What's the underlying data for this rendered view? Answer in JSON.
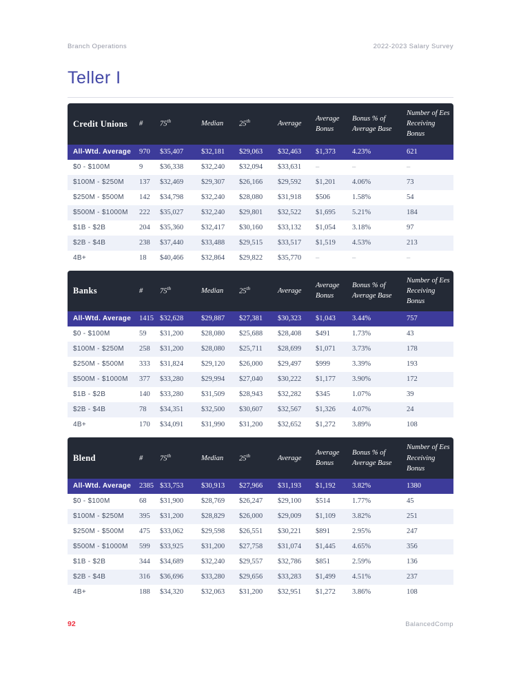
{
  "page": {
    "header_left": "Branch Operations",
    "header_right": "2022-2023 Salary Survey",
    "title": "Teller I",
    "page_number": "92",
    "footer_brand": "BalancedComp"
  },
  "colors": {
    "header_bg": "#242a36",
    "highlight_bg": "#3d3b9a",
    "stripe_bg": "#eef1f9",
    "title_color": "#4247a6",
    "page_number_color": "#ee3140"
  },
  "columns": [
    {
      "text": "#"
    },
    {
      "text": "75",
      "sup": "th"
    },
    {
      "text": "Median"
    },
    {
      "text": "25",
      "sup": "th"
    },
    {
      "text": "Average"
    },
    {
      "text": "Average Bonus"
    },
    {
      "text": "Bonus % of Average Base"
    },
    {
      "text": "Number of Ees Receiving Bonus"
    }
  ],
  "tables": [
    {
      "name": "Credit Unions",
      "all_wtd": {
        "label": "All-Wtd. Average",
        "values": [
          "970",
          "$35,407",
          "$32,181",
          "$29,063",
          "$32,463",
          "$1,373",
          "4.23%",
          "621"
        ]
      },
      "rows": [
        {
          "label": "$0 - $100M",
          "values": [
            "9",
            "$36,338",
            "$32,240",
            "$32,094",
            "$33,631",
            "–",
            "–",
            "–"
          ]
        },
        {
          "label": "$100M - $250M",
          "values": [
            "137",
            "$32,469",
            "$29,307",
            "$26,166",
            "$29,592",
            "$1,201",
            "4.06%",
            "73"
          ]
        },
        {
          "label": "$250M - $500M",
          "values": [
            "142",
            "$34,798",
            "$32,240",
            "$28,080",
            "$31,918",
            "$506",
            "1.58%",
            "54"
          ]
        },
        {
          "label": "$500M - $1000M",
          "values": [
            "222",
            "$35,027",
            "$32,240",
            "$29,801",
            "$32,522",
            "$1,695",
            "5.21%",
            "184"
          ]
        },
        {
          "label": "$1B - $2B",
          "values": [
            "204",
            "$35,360",
            "$32,417",
            "$30,160",
            "$33,132",
            "$1,054",
            "3.18%",
            "97"
          ]
        },
        {
          "label": "$2B - $4B",
          "values": [
            "238",
            "$37,440",
            "$33,488",
            "$29,515",
            "$33,517",
            "$1,519",
            "4.53%",
            "213"
          ]
        },
        {
          "label": "4B+",
          "values": [
            "18",
            "$40,466",
            "$32,864",
            "$29,822",
            "$35,770",
            "–",
            "–",
            "–"
          ]
        }
      ]
    },
    {
      "name": "Banks",
      "all_wtd": {
        "label": "All-Wtd. Average",
        "values": [
          "1415",
          "$32,628",
          "$29,887",
          "$27,381",
          "$30,323",
          "$1,043",
          "3.44%",
          "757"
        ]
      },
      "rows": [
        {
          "label": "$0 - $100M",
          "values": [
            "59",
            "$31,200",
            "$28,080",
            "$25,688",
            "$28,408",
            "$491",
            "1.73%",
            "43"
          ]
        },
        {
          "label": "$100M - $250M",
          "values": [
            "258",
            "$31,200",
            "$28,080",
            "$25,711",
            "$28,699",
            "$1,071",
            "3.73%",
            "178"
          ]
        },
        {
          "label": "$250M - $500M",
          "values": [
            "333",
            "$31,824",
            "$29,120",
            "$26,000",
            "$29,497",
            "$999",
            "3.39%",
            "193"
          ]
        },
        {
          "label": "$500M - $1000M",
          "values": [
            "377",
            "$33,280",
            "$29,994",
            "$27,040",
            "$30,222",
            "$1,177",
            "3.90%",
            "172"
          ]
        },
        {
          "label": "$1B - $2B",
          "values": [
            "140",
            "$33,280",
            "$31,509",
            "$28,943",
            "$32,282",
            "$345",
            "1.07%",
            "39"
          ]
        },
        {
          "label": "$2B - $4B",
          "values": [
            "78",
            "$34,351",
            "$32,500",
            "$30,607",
            "$32,567",
            "$1,326",
            "4.07%",
            "24"
          ]
        },
        {
          "label": "4B+",
          "values": [
            "170",
            "$34,091",
            "$31,990",
            "$31,200",
            "$32,652",
            "$1,272",
            "3.89%",
            "108"
          ]
        }
      ]
    },
    {
      "name": "Blend",
      "all_wtd": {
        "label": "All-Wtd. Average",
        "values": [
          "2385",
          "$33,753",
          "$30,913",
          "$27,966",
          "$31,193",
          "$1,192",
          "3.82%",
          "1380"
        ]
      },
      "rows": [
        {
          "label": "$0 - $100M",
          "values": [
            "68",
            "$31,900",
            "$28,769",
            "$26,247",
            "$29,100",
            "$514",
            "1.77%",
            "45"
          ]
        },
        {
          "label": "$100M - $250M",
          "values": [
            "395",
            "$31,200",
            "$28,829",
            "$26,000",
            "$29,009",
            "$1,109",
            "3.82%",
            "251"
          ]
        },
        {
          "label": "$250M - $500M",
          "values": [
            "475",
            "$33,062",
            "$29,598",
            "$26,551",
            "$30,221",
            "$891",
            "2.95%",
            "247"
          ]
        },
        {
          "label": "$500M - $1000M",
          "values": [
            "599",
            "$33,925",
            "$31,200",
            "$27,758",
            "$31,074",
            "$1,445",
            "4.65%",
            "356"
          ]
        },
        {
          "label": "$1B - $2B",
          "values": [
            "344",
            "$34,689",
            "$32,240",
            "$29,557",
            "$32,786",
            "$851",
            "2.59%",
            "136"
          ]
        },
        {
          "label": "$2B - $4B",
          "values": [
            "316",
            "$36,696",
            "$33,280",
            "$29,656",
            "$33,283",
            "$1,499",
            "4.51%",
            "237"
          ]
        },
        {
          "label": "4B+",
          "values": [
            "188",
            "$34,320",
            "$32,063",
            "$31,200",
            "$32,951",
            "$1,272",
            "3.86%",
            "108"
          ]
        }
      ]
    }
  ]
}
